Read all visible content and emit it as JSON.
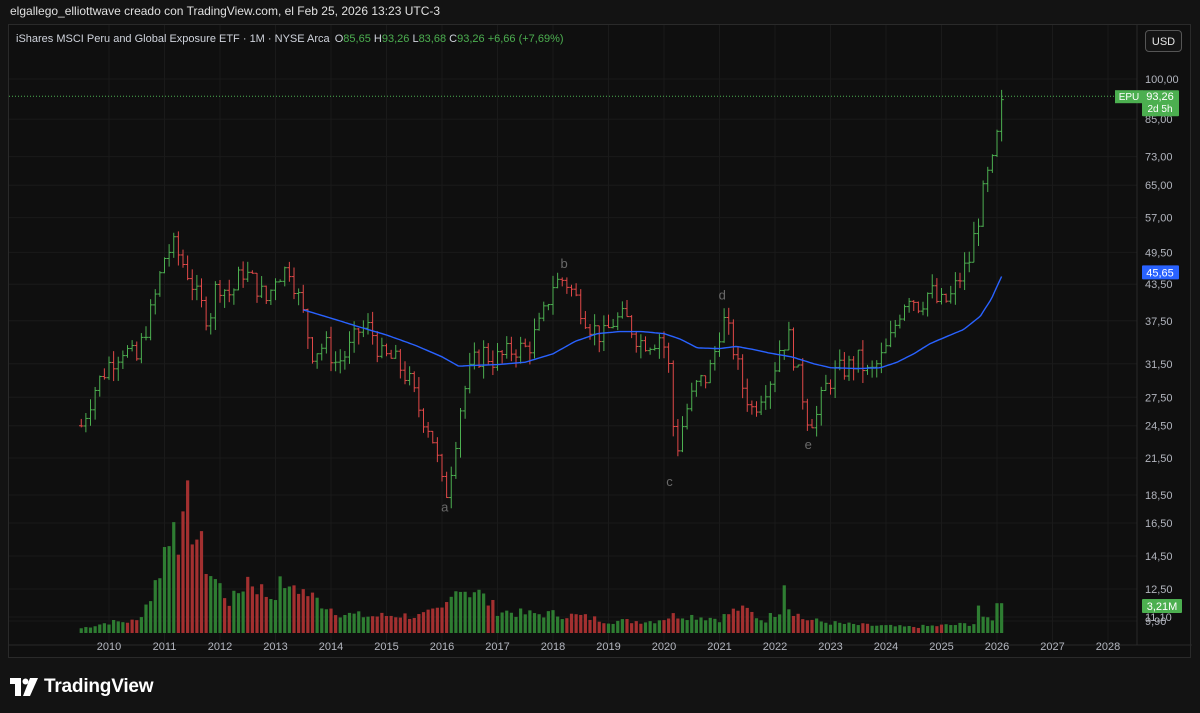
{
  "caption": "elgallego_elliottwave creado con TradingView.com, el Feb 25, 2026 13:23 UTC-3",
  "legend": {
    "name": "iShares MSCI Peru and Global Exposure ETF",
    "sep1": "·",
    "interval": "1M",
    "sep2": "·",
    "exchange": "NYSE Arca",
    "o_label": "O",
    "o_value": "85,65",
    "h_label": "H",
    "h_value": "93,26",
    "l_label": "L",
    "l_value": "83,68",
    "c_label": "C",
    "c_value": "93,26",
    "change": "+6,66 (+7,69%)"
  },
  "currency_button": "USD",
  "brand": "TradingView",
  "colors": {
    "up": "#4caf50",
    "down": "#e04848",
    "ma": "#2962ff",
    "volume_up": "#2e7d32",
    "volume_down": "#a33030",
    "label_green": "#4caf50",
    "label_blue": "#2962ff",
    "wave_label": "#6a6a6a"
  },
  "chart_data": {
    "type": "bar",
    "subtype": "ohlc-monthly-log",
    "symbol": "EPU",
    "y_scale": "log",
    "y_ticks": [
      "100,00",
      "85,00",
      "73,00",
      "65,00",
      "57,00",
      "49,50",
      "43,50",
      "37,50",
      "31,50",
      "27,50",
      "24,50",
      "21,50",
      "18,50",
      "16,50",
      "14,50",
      "12,50",
      "11,10",
      "9,90"
    ],
    "x_ticks": [
      "2010",
      "2011",
      "2012",
      "2013",
      "2014",
      "2015",
      "2016",
      "2017",
      "2018",
      "2019",
      "2020",
      "2021",
      "2022",
      "2023",
      "2024",
      "2025",
      "2026",
      "2027",
      "2028"
    ],
    "price_labels": [
      {
        "kind": "last",
        "symbol": "EPU",
        "text": "93,26",
        "sub": "2d 5h",
        "value": 93.26
      },
      {
        "kind": "ma",
        "text": "45,65",
        "value": 45.65
      },
      {
        "kind": "volume",
        "text": "3,21M"
      }
    ],
    "wave_labels": [
      {
        "text": "a",
        "date": 2016.05,
        "value": 17.3
      },
      {
        "text": "b",
        "date": 2018.2,
        "value": 46.5
      },
      {
        "text": "c",
        "date": 2020.1,
        "value": 19.2
      },
      {
        "text": "d",
        "date": 2021.05,
        "value": 40.9
      },
      {
        "text": "e",
        "date": 2022.6,
        "value": 22.3
      }
    ],
    "anchors": [
      [
        2009.5,
        24.5
      ],
      [
        2009.75,
        28.5
      ],
      [
        2010.0,
        31.5
      ],
      [
        2010.25,
        33.5
      ],
      [
        2010.5,
        32.0
      ],
      [
        2010.8,
        40.0
      ],
      [
        2011.0,
        48.5
      ],
      [
        2011.15,
        51.0
      ],
      [
        2011.4,
        46.0
      ],
      [
        2011.6,
        41.0
      ],
      [
        2011.8,
        37.5
      ],
      [
        2011.95,
        44.0
      ],
      [
        2012.2,
        41.5
      ],
      [
        2012.4,
        46.0
      ],
      [
        2012.6,
        44.0
      ],
      [
        2012.85,
        40.5
      ],
      [
        2013.0,
        45.0
      ],
      [
        2013.25,
        46.5
      ],
      [
        2013.5,
        38.5
      ],
      [
        2013.65,
        33.0
      ],
      [
        2013.9,
        34.0
      ],
      [
        2014.1,
        31.5
      ],
      [
        2014.3,
        33.0
      ],
      [
        2014.5,
        36.0
      ],
      [
        2014.7,
        36.5
      ],
      [
        2014.9,
        32.5
      ],
      [
        2015.15,
        32.0
      ],
      [
        2015.4,
        29.5
      ],
      [
        2015.6,
        26.0
      ],
      [
        2015.8,
        24.0
      ],
      [
        2015.95,
        20.5
      ],
      [
        2016.05,
        18.0
      ],
      [
        2016.2,
        21.5
      ],
      [
        2016.35,
        27.0
      ],
      [
        2016.55,
        31.5
      ],
      [
        2016.75,
        33.0
      ],
      [
        2016.9,
        32.0
      ],
      [
        2017.1,
        32.5
      ],
      [
        2017.3,
        33.5
      ],
      [
        2017.55,
        33.5
      ],
      [
        2017.8,
        37.5
      ],
      [
        2018.0,
        43.5
      ],
      [
        2018.2,
        44.5
      ],
      [
        2018.45,
        40.5
      ],
      [
        2018.65,
        37.0
      ],
      [
        2018.9,
        35.0
      ],
      [
        2019.1,
        37.5
      ],
      [
        2019.3,
        38.0
      ],
      [
        2019.55,
        34.5
      ],
      [
        2019.8,
        34.5
      ],
      [
        2019.95,
        35.5
      ],
      [
        2020.1,
        30.5
      ],
      [
        2020.2,
        21.5
      ],
      [
        2020.4,
        26.0
      ],
      [
        2020.6,
        29.0
      ],
      [
        2020.8,
        30.0
      ],
      [
        2020.95,
        34.0
      ],
      [
        2021.05,
        38.0
      ],
      [
        2021.2,
        35.0
      ],
      [
        2021.4,
        29.0
      ],
      [
        2021.6,
        26.0
      ],
      [
        2021.75,
        28.0
      ],
      [
        2021.95,
        30.0
      ],
      [
        2022.1,
        34.0
      ],
      [
        2022.25,
        35.0
      ],
      [
        2022.45,
        29.0
      ],
      [
        2022.6,
        25.0
      ],
      [
        2022.75,
        25.5
      ],
      [
        2022.9,
        28.5
      ],
      [
        2023.1,
        30.5
      ],
      [
        2023.3,
        31.0
      ],
      [
        2023.5,
        32.0
      ],
      [
        2023.7,
        30.0
      ],
      [
        2023.9,
        32.0
      ],
      [
        2024.05,
        34.0
      ],
      [
        2024.25,
        39.0
      ],
      [
        2024.4,
        42.0
      ],
      [
        2024.6,
        40.0
      ],
      [
        2024.8,
        42.5
      ],
      [
        2024.95,
        40.0
      ],
      [
        2025.15,
        41.0
      ],
      [
        2025.3,
        44.0
      ],
      [
        2025.5,
        48.0
      ],
      [
        2025.65,
        56.0
      ],
      [
        2025.8,
        66.0
      ],
      [
        2025.95,
        72.0
      ],
      [
        2026.05,
        85.5
      ],
      [
        2026.12,
        93.26
      ]
    ],
    "ma_anchors": [
      [
        2013.5,
        39.2
      ],
      [
        2014.0,
        37.9
      ],
      [
        2014.5,
        36.6
      ],
      [
        2015.0,
        35.4
      ],
      [
        2015.5,
        34.0
      ],
      [
        2016.0,
        32.4
      ],
      [
        2016.3,
        31.2
      ],
      [
        2016.6,
        31.3
      ],
      [
        2017.0,
        31.4
      ],
      [
        2017.5,
        31.7
      ],
      [
        2018.0,
        32.8
      ],
      [
        2018.4,
        34.5
      ],
      [
        2018.8,
        35.6
      ],
      [
        2019.2,
        35.9
      ],
      [
        2019.6,
        35.9
      ],
      [
        2020.0,
        35.6
      ],
      [
        2020.3,
        34.8
      ],
      [
        2020.6,
        33.6
      ],
      [
        2021.0,
        33.5
      ],
      [
        2021.3,
        33.8
      ],
      [
        2021.6,
        33.4
      ],
      [
        2021.9,
        32.9
      ],
      [
        2022.3,
        32.4
      ],
      [
        2022.7,
        31.5
      ],
      [
        2023.0,
        31.0
      ],
      [
        2023.5,
        30.9
      ],
      [
        2023.9,
        31.0
      ],
      [
        2024.2,
        31.7
      ],
      [
        2024.5,
        32.8
      ],
      [
        2024.8,
        34.2
      ],
      [
        2025.1,
        35.2
      ],
      [
        2025.4,
        36.2
      ],
      [
        2025.7,
        38.2
      ],
      [
        2025.9,
        41.0
      ],
      [
        2026.12,
        45.65
      ]
    ],
    "volume_anchors": [
      [
        2009.5,
        0.4
      ],
      [
        2010.0,
        0.9
      ],
      [
        2010.5,
        1.0
      ],
      [
        2010.8,
        3.5
      ],
      [
        2011.0,
        7.0
      ],
      [
        2011.2,
        7.8
      ],
      [
        2011.4,
        10.5
      ],
      [
        2011.55,
        8.5
      ],
      [
        2011.8,
        5.2
      ],
      [
        2012.2,
        2.5
      ],
      [
        2012.5,
        4.6
      ],
      [
        2012.9,
        3.0
      ],
      [
        2013.2,
        4.5
      ],
      [
        2013.5,
        3.5
      ],
      [
        2013.8,
        2.6
      ],
      [
        2014.2,
        1.6
      ],
      [
        2014.7,
        1.4
      ],
      [
        2015.2,
        1.5
      ],
      [
        2015.6,
        1.4
      ],
      [
        2016.0,
        1.9
      ],
      [
        2016.3,
        3.8
      ],
      [
        2016.6,
        3.6
      ],
      [
        2017.0,
        1.9
      ],
      [
        2017.5,
        1.6
      ],
      [
        2018.0,
        1.6
      ],
      [
        2018.5,
        1.4
      ],
      [
        2019.0,
        1.0
      ],
      [
        2019.5,
        1.0
      ],
      [
        2019.8,
        1.0
      ],
      [
        2020.2,
        1.5
      ],
      [
        2020.6,
        1.4
      ],
      [
        2021.0,
        1.2
      ],
      [
        2021.4,
        2.2
      ],
      [
        2021.8,
        1.0
      ],
      [
        2022.2,
        2.4
      ],
      [
        2022.5,
        1.2
      ],
      [
        2022.9,
        0.9
      ],
      [
        2023.4,
        0.7
      ],
      [
        2023.9,
        0.6
      ],
      [
        2024.4,
        0.5
      ],
      [
        2024.9,
        0.6
      ],
      [
        2025.3,
        0.7
      ],
      [
        2025.6,
        0.8
      ],
      [
        2025.8,
        1.2
      ],
      [
        2025.95,
        1.3
      ],
      [
        2026.05,
        3.21
      ],
      [
        2026.12,
        3.0
      ]
    ],
    "volume_spikes": [
      [
        2011.17,
        9.3
      ],
      [
        2011.33,
        10.2
      ],
      [
        2011.42,
        12.8
      ],
      [
        2013.25,
        3.9
      ],
      [
        2016.25,
        3.5
      ],
      [
        2016.5,
        3.0
      ],
      [
        2021.42,
        2.3
      ],
      [
        2022.17,
        4.0
      ],
      [
        2025.67,
        2.3
      ],
      [
        2026.04,
        2.5
      ]
    ],
    "volume_max": 13.0,
    "volume_unit": "M",
    "x_range": [
      2009.45,
      2028.45
    ]
  }
}
